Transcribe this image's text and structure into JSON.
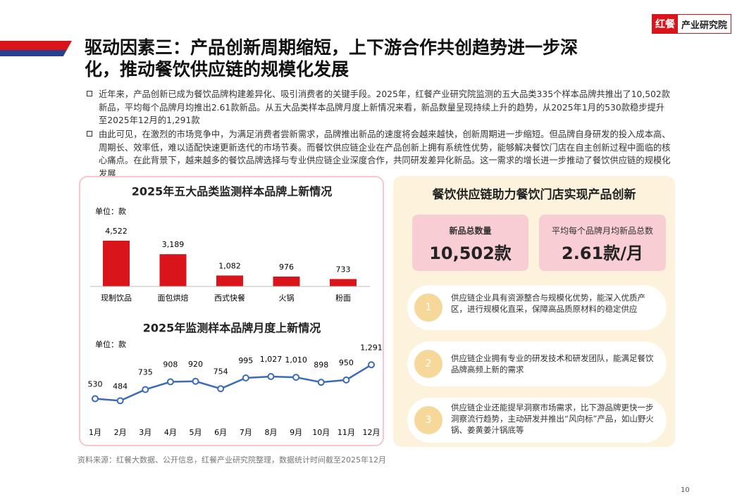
{
  "header": {
    "logo_mark": "红餐",
    "logo_text": "产业研究院",
    "title_lines": [
      "驱动因素三：产品创新周期缩短，上下游合作共创趋势进一步深",
      "化，推动餐饮供应链的规模化发展"
    ]
  },
  "bullets": [
    "近年来，产品创新已成为餐饮品牌构建差异化、吸引消费者的关键手段。2025年，红餐产业研究院监测的五大品类335个样本品牌共推出了10,502款新品，平均每个品牌月均推出2.61款新品。从五大品类样本品牌月度上新情况来看，新品数量呈现持续上升的趋势，从2025年1月的530款稳步提升至2025年12月的1,291款",
    "由此可见，在激烈的市场竞争中，为满足消费者尝新需求，品牌推出新品的速度将会越来越快，创新周期进一步缩短。但品牌自身研发的投入成本高、周期长、效率低，难以适配快速更新迭代的市场节奏。而餐饮供应链企业在产品创新上拥有系统性优势，能够解决餐饮门店在自主创新过程中面临的核心痛点。在此背景下，越来越多的餐饮品牌选择与专业供应链企业深度合作，共同研发差异化新品。这一需求的增长进一步推动了餐饮供应链的规模化发展"
  ],
  "chart_data": [
    {
      "type": "bar",
      "title": "2025年五大品类监测样本品牌上新情况",
      "unit": "单位：款",
      "categories": [
        "现制饮品",
        "面包烘焙",
        "西式快餐",
        "火锅",
        "粉面"
      ],
      "values": [
        4522,
        3189,
        1082,
        976,
        733
      ],
      "value_labels": [
        "4,522",
        "3,189",
        "1,082",
        "976",
        "733"
      ],
      "color": "#d9141b"
    },
    {
      "type": "line",
      "title": "2025年监测样本品牌月度上新情况",
      "unit": "单位：款",
      "categories": [
        "1月",
        "2月",
        "3月",
        "4月",
        "5月",
        "6月",
        "7月",
        "8月",
        "9月",
        "10月",
        "11月",
        "12月"
      ],
      "values": [
        530,
        484,
        735,
        908,
        920,
        754,
        995,
        1027,
        1010,
        898,
        950,
        1291
      ],
      "value_labels": [
        "530",
        "484",
        "735",
        "908",
        "920",
        "754",
        "995",
        "1,027",
        "1,010",
        "898",
        "950",
        "1,291"
      ],
      "color": "#3b6bb5"
    }
  ],
  "panel": {
    "title": "餐饮供应链助力餐饮门店实现产品创新",
    "stats": [
      {
        "label": "新品总数量",
        "value": "10,502款"
      },
      {
        "label": "平均每个品牌月均新品总数",
        "value": "2.61款/月"
      }
    ],
    "items": [
      {
        "num": "1",
        "text": "供应链企业具有资源整合与规模化优势，能深入优质产区，进行规模化直采，保障高品质原材料的稳定供应"
      },
      {
        "num": "2",
        "text": "供应链企业拥有专业的研发技术和研发团队，能满足餐饮品牌高频上新的需求"
      },
      {
        "num": "3",
        "text": "供应链企业还能提早洞察市场需求，比下游品牌更快一步洞察流行趋势，主动研发并推出“风向标”产品，如山野火锅、姜黄姜汁锅底等"
      }
    ]
  },
  "footer": {
    "source": "资料来源：红餐大数据、公开信息，红餐产业研究院整理，数据统计时间截至2025年12月",
    "page": "10"
  }
}
